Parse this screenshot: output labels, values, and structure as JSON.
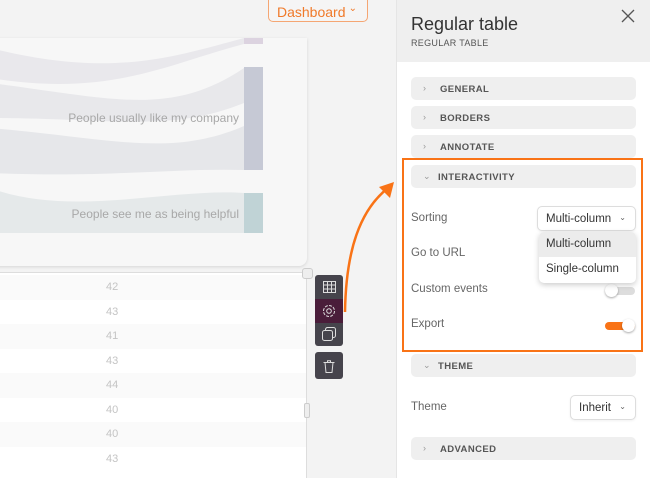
{
  "header": {
    "dashboard_label": "Dashboard"
  },
  "chart": {
    "labels": [
      "People usually like my company",
      "People see me as being helpful"
    ]
  },
  "table": {
    "values": [
      "42",
      "43",
      "41",
      "43",
      "44",
      "40",
      "40",
      "43"
    ]
  },
  "toolbar": {
    "icons": [
      "table-icon",
      "gear-icon",
      "duplicate-icon",
      "trash-icon"
    ]
  },
  "panel": {
    "title": "Regular table",
    "subtitle": "REGULAR TABLE",
    "sections": {
      "general": "GENERAL",
      "borders": "BORDERS",
      "annotate": "ANNOTATE",
      "interactivity": "INTERACTIVITY",
      "theme": "THEME",
      "advanced": "ADVANCED"
    },
    "interactivity": {
      "sorting_label": "Sorting",
      "sorting_value": "Multi-column",
      "sorting_options": [
        "Multi-column",
        "Single-column"
      ],
      "goto_label": "Go to URL",
      "custom_events_label": "Custom events",
      "custom_events_on": false,
      "export_label": "Export",
      "export_on": true
    },
    "theme": {
      "label": "Theme",
      "value": "Inherit"
    }
  },
  "colors": {
    "accent": "#f97316",
    "toolbar": "#46444c",
    "toolbar_active": "#4a1d3a"
  }
}
